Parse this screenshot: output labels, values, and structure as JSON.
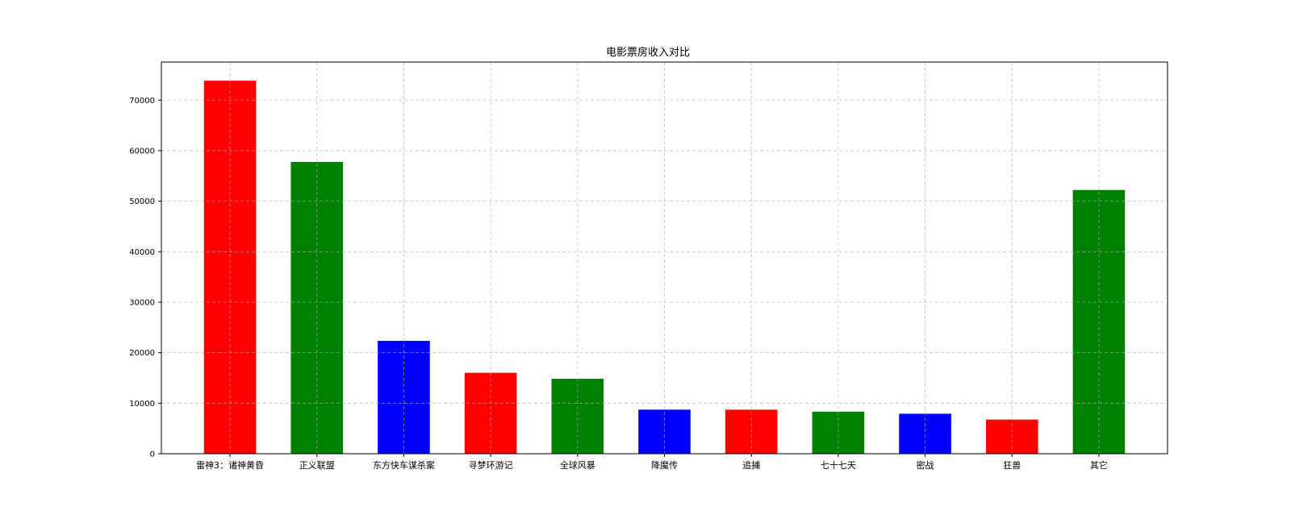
{
  "chart_data": {
    "type": "bar",
    "title": "电影票房收入对比",
    "xlabel": "",
    "ylabel": "",
    "categories": [
      "雷神3：诸神黄昏",
      "正义联盟",
      "东方快车谋杀案",
      "寻梦环游记",
      "全球风暴",
      "降魔传",
      "追捕",
      "七十七天",
      "密战",
      "狂兽",
      "其它"
    ],
    "values": [
      73853,
      57767,
      22354,
      16022,
      14839,
      8725,
      8716,
      8318,
      7916,
      6764,
      52222
    ],
    "bar_colors": [
      "#ff0000",
      "#008000",
      "#0000ff",
      "#ff0000",
      "#008000",
      "#0000ff",
      "#ff0000",
      "#008000",
      "#0000ff",
      "#ff0000",
      "#008000"
    ],
    "yticks": [
      0,
      10000,
      20000,
      30000,
      40000,
      50000,
      60000,
      70000
    ],
    "ylim": [
      0,
      77545
    ],
    "grid": true,
    "legend": "none"
  }
}
